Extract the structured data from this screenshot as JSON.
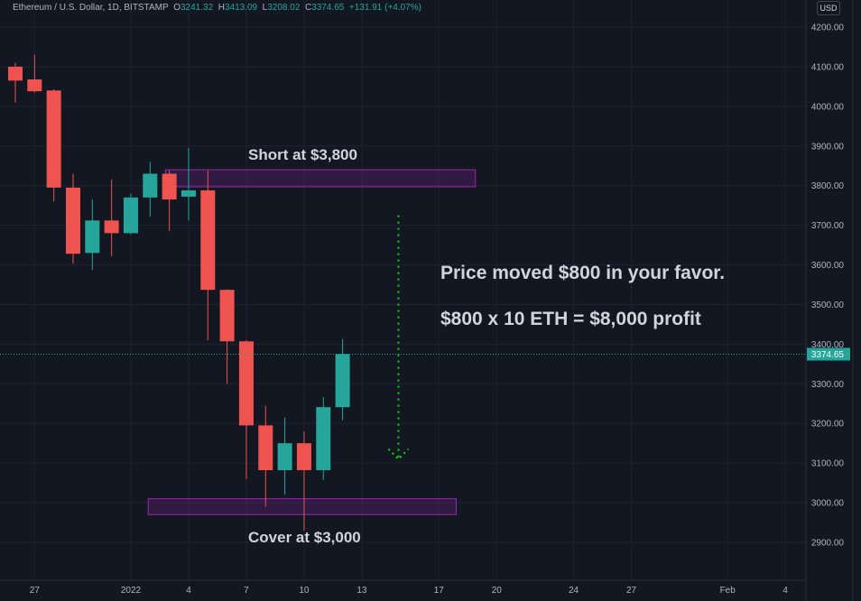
{
  "header": {
    "symbol": "Ethereum / U.S. Dollar, 1D, BITSTAMP",
    "open_label": "O",
    "open": "3241.32",
    "high_label": "H",
    "high": "3413.09",
    "low_label": "L",
    "low": "3208.02",
    "close_label": "C",
    "close": "3374.65",
    "change": "+131.91 (+4.07%)",
    "currency": "USD"
  },
  "annotations": {
    "short": "Short at $3,800",
    "cover": "Cover at $3,000",
    "line1": "Price moved $800 in your favor.",
    "line2": "$800 x 10 ETH = $8,000 profit"
  },
  "colors": {
    "up": "#26a69a",
    "down": "#ef5350",
    "background": "#131722",
    "box": "#9c27b0",
    "arrow": "#00e600"
  },
  "chart_data": {
    "type": "candlestick",
    "ylim": [
      2860,
      4230
    ],
    "grid": true,
    "y_ticks": [
      "4200.00",
      "4100.00",
      "4000.00",
      "3900.00",
      "3800.00",
      "3700.00",
      "3600.00",
      "3500.00",
      "3400.00",
      "3300.00",
      "3200.00",
      "3100.00",
      "3000.00",
      "2900.00"
    ],
    "x_ticks": [
      {
        "label": "27",
        "day": 1
      },
      {
        "label": "2022",
        "day": 6
      },
      {
        "label": "4",
        "day": 9
      },
      {
        "label": "7",
        "day": 12
      },
      {
        "label": "10",
        "day": 15
      },
      {
        "label": "13",
        "day": 18
      },
      {
        "label": "17",
        "day": 22
      },
      {
        "label": "20",
        "day": 25
      },
      {
        "label": "24",
        "day": 29
      },
      {
        "label": "27",
        "day": 32
      },
      {
        "label": "Feb",
        "day": 37
      },
      {
        "label": "4",
        "day": 40
      }
    ],
    "last_price": "3374.65",
    "candles": [
      {
        "date": "2021-12-26",
        "o": 4100,
        "h": 4110,
        "l": 4010,
        "c": 4065
      },
      {
        "date": "2021-12-27",
        "o": 4068,
        "h": 4130,
        "l": 4035,
        "c": 4038
      },
      {
        "date": "2021-12-28",
        "o": 4040,
        "h": 4043,
        "l": 3760,
        "c": 3795
      },
      {
        "date": "2021-12-29",
        "o": 3795,
        "h": 3830,
        "l": 3603,
        "c": 3628
      },
      {
        "date": "2021-12-30",
        "o": 3630,
        "h": 3765,
        "l": 3587,
        "c": 3712
      },
      {
        "date": "2021-12-31",
        "o": 3712,
        "h": 3815,
        "l": 3622,
        "c": 3680
      },
      {
        "date": "2022-01-01",
        "o": 3680,
        "h": 3780,
        "l": 3677,
        "c": 3770
      },
      {
        "date": "2022-01-02",
        "o": 3770,
        "h": 3860,
        "l": 3722,
        "c": 3830
      },
      {
        "date": "2022-01-03",
        "o": 3830,
        "h": 3838,
        "l": 3685,
        "c": 3765
      },
      {
        "date": "2022-01-04",
        "o": 3772,
        "h": 3895,
        "l": 3712,
        "c": 3788
      },
      {
        "date": "2022-01-05",
        "o": 3788,
        "h": 3838,
        "l": 3410,
        "c": 3537
      },
      {
        "date": "2022-01-06",
        "o": 3537,
        "h": 3538,
        "l": 3300,
        "c": 3407
      },
      {
        "date": "2022-01-07",
        "o": 3407,
        "h": 3410,
        "l": 3060,
        "c": 3195
      },
      {
        "date": "2022-01-08",
        "o": 3195,
        "h": 3245,
        "l": 2990,
        "c": 3082
      },
      {
        "date": "2022-01-09",
        "o": 3082,
        "h": 3215,
        "l": 3020,
        "c": 3150
      },
      {
        "date": "2022-01-10",
        "o": 3150,
        "h": 3180,
        "l": 2930,
        "c": 3082
      },
      {
        "date": "2022-01-11",
        "o": 3082,
        "h": 3266,
        "l": 3057,
        "c": 3241
      },
      {
        "date": "2022-01-12",
        "o": 3241,
        "h": 3413,
        "l": 3208,
        "c": 3375
      }
    ],
    "boxes": [
      {
        "name": "short-zone",
        "day_from": 7.8,
        "day_to": 23.9,
        "price_from": 3797,
        "price_to": 3840
      },
      {
        "name": "cover-zone",
        "day_from": 6.9,
        "day_to": 22.9,
        "price_from": 2970,
        "price_to": 3010
      }
    ],
    "arrow": {
      "day": 19.9,
      "price_from": 3725,
      "price_to": 3110
    }
  }
}
